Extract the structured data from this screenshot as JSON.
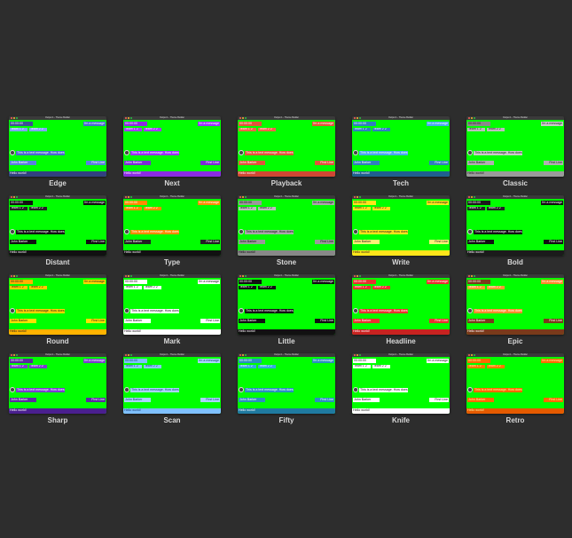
{
  "window_title": "Output 1 - Theme Builder",
  "sample": {
    "clock": "00:00:00",
    "score_value": "2",
    "message_short": "I'm a message",
    "message_long": "This is a text message. How does it look?",
    "name": "John Barker",
    "role": "First Line",
    "ticker": "Hello world!"
  },
  "themes": [
    {
      "name": "Edge",
      "clock": "#3c4f95",
      "msg": "#4a68d0",
      "team": "#7fa7ff",
      "lower": "#5a7fe0",
      "ticker": "#31407f",
      "light": "#ffffff"
    },
    {
      "name": "Next",
      "clock": "#8a2be2",
      "msg": "#9b30ff",
      "team": "#a33df5",
      "lower": "#7b2cd6",
      "ticker": "#8a2be2",
      "light": "#ffffff"
    },
    {
      "name": "Playback",
      "clock": "#e2533a",
      "msg": "#e2533a",
      "team": "#f06448",
      "lower": "#e2533a",
      "ticker": "#cf4733",
      "light": "#ffffff"
    },
    {
      "name": "Tech",
      "clock": "#2f7fbf",
      "msg": "#4aa8ef",
      "team": "#2f7fbf",
      "lower": "#2f7fbf",
      "ticker": "#1f5f8f",
      "light": "#ffffff"
    },
    {
      "name": "Classic",
      "clock": "#8a8a8a",
      "msg": "#c9c9c9",
      "team": "#bdbdbd",
      "lower": "#b0b0b0",
      "ticker": "#9a9a9a",
      "light": "#222222"
    },
    {
      "name": "Distant",
      "clock": "#111111",
      "msg": "#111111",
      "team": "#222222",
      "lower": "#111111",
      "ticker": "#111111",
      "light": "#ffffff"
    },
    {
      "name": "Type",
      "clock": "#ff8c00",
      "msg": "#ff8c00",
      "team": "#ff8c00",
      "lower": "#222222",
      "ticker": "#111111",
      "light": "#ffffff"
    },
    {
      "name": "Stone",
      "clock": "#9a9a9a",
      "msg": "#a9a9a9",
      "team": "#bcbcbc",
      "lower": "#9a9a9a",
      "ticker": "#888888",
      "light": "#111111"
    },
    {
      "name": "Write",
      "clock": "#ffe51a",
      "msg": "#ffe51a",
      "team": "#ffe51a",
      "lower": "#fff176",
      "ticker": "#ffe51a",
      "light": "#222222"
    },
    {
      "name": "Bold",
      "clock": "#1b1b1b",
      "msg": "#111111",
      "team": "#222222",
      "lower": "#111111",
      "ticker": "#1b1b1b",
      "light": "#ffffff"
    },
    {
      "name": "Round",
      "clock": "#ffb300",
      "msg": "#ffd600",
      "team": "#ffcc00",
      "lower": "#ffe100",
      "ticker": "#ffb300",
      "light": "#222222"
    },
    {
      "name": "Mark",
      "clock": "#ffffff",
      "msg": "#ffffff",
      "team": "#ffffff",
      "lower": "#ffffff",
      "ticker": "#ffffff",
      "light": "#111111"
    },
    {
      "name": "Little",
      "clock": "#111111",
      "msg": "#111111",
      "team": "#111111",
      "lower": "#111111",
      "ticker": "#111111",
      "light": "#ffffff"
    },
    {
      "name": "Headline",
      "clock": "#e8312f",
      "msg": "#e8312f",
      "team": "#e8312f",
      "lower": "#e8312f",
      "ticker": "#c82320",
      "light": "#ffffff"
    },
    {
      "name": "Epic",
      "clock": "#7a3a1a",
      "msg": "#ff8a2a",
      "team": "#ff9a33",
      "lower": "#7a3a1a",
      "ticker": "#7a3a1a",
      "light": "#ffffff"
    },
    {
      "name": "Sharp",
      "clock": "#5a2aa0",
      "msg": "#7a3ccf",
      "team": "#7a3ccf",
      "lower": "#5a2aa0",
      "ticker": "#4a1f8f",
      "light": "#ffffff"
    },
    {
      "name": "Scan",
      "clock": "#7fc0ff",
      "msg": "#a9d6ff",
      "team": "#8cc8ff",
      "lower": "#a9d6ff",
      "ticker": "#7fc0ff",
      "light": "#1a3a6a"
    },
    {
      "name": "Fifty",
      "clock": "#2a8fbf",
      "msg": "#2a8fbf",
      "team": "#35a9df",
      "lower": "#2a8fbf",
      "ticker": "#1f7aa0",
      "light": "#ffffff"
    },
    {
      "name": "Knife",
      "clock": "#ffffff",
      "msg": "#ffffff",
      "team": "#ffffff",
      "lower": "#ffffff",
      "ticker": "#ffffff",
      "light": "#222222"
    },
    {
      "name": "Retro",
      "clock": "#ff6a00",
      "msg": "#ff6a00",
      "team": "#ff7a00",
      "lower": "#ff6a00",
      "ticker": "#e55a00",
      "light": "#fff3a0"
    }
  ]
}
